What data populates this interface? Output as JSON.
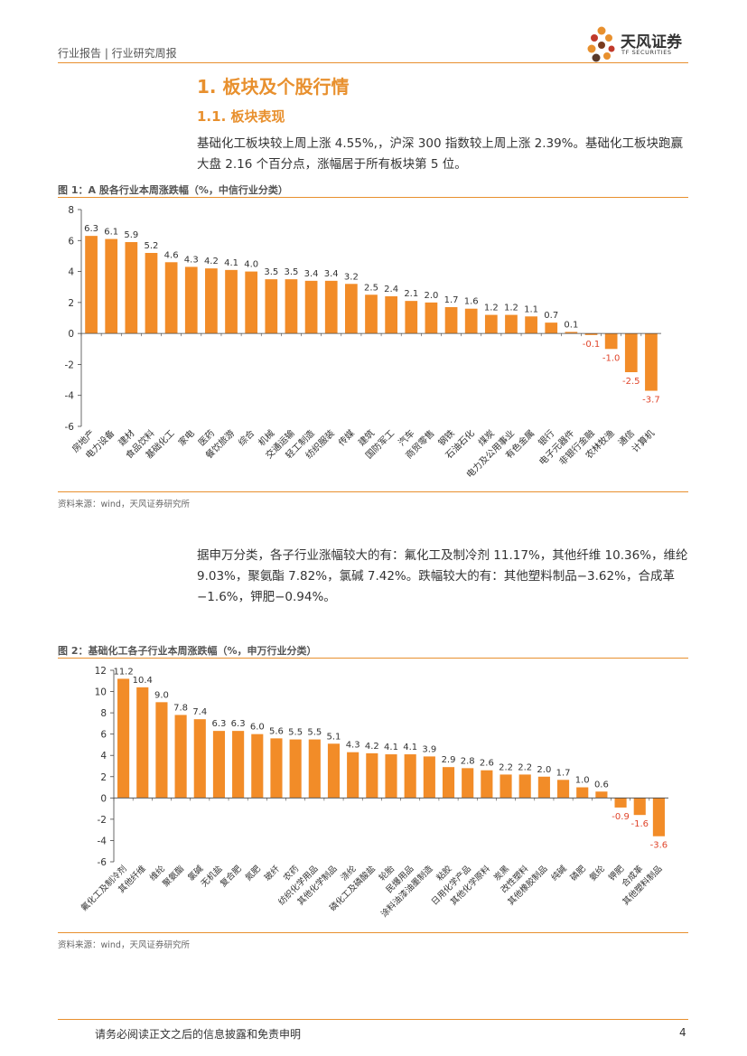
{
  "header": {
    "report_type": "行业报告 | 行业研究周报",
    "brand_cn": "天风证券",
    "brand_en": "TF SECURITIES",
    "accent": "#E8902E"
  },
  "section": {
    "h1": "1. 板块及个股行情",
    "h2": "1.1. 板块表现",
    "para1": "基础化工板块较上周上涨 4.55%,，沪深 300 指数较上周上涨 2.39%。基础化工板块跑赢大盘 2.16 个百分点，涨幅居于所有板块第 5 位。",
    "para2": "据申万分类，各子行业涨幅较大的有：氟化工及制冷剂 11.17%，其他纤维 10.36%，维纶 9.03%，聚氨酯 7.82%，氯碱 7.42%。跌幅较大的有：其他塑料制品−3.62%，合成革−1.6%，钾肥−0.94%。"
  },
  "figure1": {
    "title": "图 1：A 股各行业本周涨跌幅（%，中信行业分类）",
    "source": "资料来源：wind，天风证券研究所"
  },
  "figure2": {
    "title": "图 2：基础化工各子行业本周涨跌幅（%，申万行业分类）",
    "source": "资料来源：wind，天风证券研究所"
  },
  "footer": {
    "disclaimer": "请务必阅读正文之后的信息披露和免责申明",
    "page": "4"
  },
  "colors": {
    "bar": "#F28C28",
    "neg_label": "#E0452B",
    "axis": "#444444"
  },
  "chart_data": [
    {
      "type": "bar",
      "title": "图 1：A 股各行业本周涨跌幅（%，中信行业分类）",
      "xlabel": "",
      "ylabel": "%",
      "ylim": [
        -6,
        8
      ],
      "yticks": [
        -6,
        -4,
        -2,
        0,
        2,
        4,
        6,
        8
      ],
      "categories": [
        "房地产",
        "电力设备",
        "建材",
        "食品饮料",
        "基础化工",
        "家电",
        "医药",
        "餐饮旅游",
        "综合",
        "机械",
        "交通运输",
        "轻工制造",
        "纺织服装",
        "传媒",
        "建筑",
        "国防军工",
        "汽车",
        "商贸零售",
        "钢铁",
        "石油石化",
        "煤炭",
        "电力及公用事业",
        "有色金属",
        "银行",
        "电子元器件",
        "非银行金融",
        "农林牧渔",
        "通信",
        "计算机"
      ],
      "values": [
        6.3,
        6.1,
        5.9,
        5.2,
        4.6,
        4.3,
        4.2,
        4.1,
        4.0,
        3.5,
        3.5,
        3.4,
        3.4,
        3.2,
        2.5,
        2.4,
        2.1,
        2.0,
        1.7,
        1.6,
        1.2,
        1.2,
        1.1,
        0.7,
        0.1,
        -0.1,
        -1.0,
        -2.5,
        -3.7
      ],
      "labels": [
        "6.3",
        "6.1",
        "5.9",
        "5.2",
        "4.6",
        "4.3",
        "4.2",
        "4.1",
        "4.0",
        "3.5",
        "3.5",
        "3.4",
        "3.4",
        "3.2",
        "2.5",
        "2.4",
        "2.1",
        "2.0",
        "1.7",
        "1.6",
        "1.2",
        "1.2",
        "1.1",
        "0.7",
        "0.1",
        "-0.1",
        "-1.0",
        "-2.5",
        "-3.7"
      ]
    },
    {
      "type": "bar",
      "title": "图 2：基础化工各子行业本周涨跌幅（%，申万行业分类）",
      "xlabel": "",
      "ylabel": "%",
      "ylim": [
        -6,
        12
      ],
      "yticks": [
        -6,
        -4,
        -2,
        0,
        2,
        4,
        6,
        8,
        10,
        12
      ],
      "categories": [
        "氟化工及制冷剂",
        "其他纤维",
        "维纶",
        "聚氨酯",
        "氯碱",
        "无机盐",
        "复合肥",
        "氮肥",
        "玻纤",
        "农药",
        "纺织化学用品",
        "其他化学制品",
        "涤纶",
        "磷化工及磷酸盐",
        "轮胎",
        "民爆用品",
        "涂料油漆油墨制造",
        "粘胶",
        "日用化学产品",
        "其他化学原料",
        "炭黑",
        "改性塑料",
        "其他橡胶制品",
        "纯碱",
        "磷肥",
        "氨纶",
        "钾肥",
        "合成革",
        "其他塑料制品"
      ],
      "values": [
        11.2,
        10.4,
        9.0,
        7.8,
        7.4,
        6.3,
        6.3,
        6.0,
        5.6,
        5.5,
        5.5,
        5.1,
        4.3,
        4.2,
        4.1,
        4.1,
        3.9,
        2.9,
        2.8,
        2.6,
        2.2,
        2.2,
        2.0,
        1.7,
        1.0,
        0.6,
        -0.9,
        -1.6,
        -3.6
      ],
      "labels": [
        "11.2",
        "10.4",
        "9.0",
        "7.8",
        "7.4",
        "6.3",
        "6.3",
        "6.0",
        "5.6",
        "5.5",
        "5.5",
        "5.1",
        "4.3",
        "4.2",
        "4.1",
        "4.1",
        "3.9",
        "2.9",
        "2.8",
        "2.6",
        "2.2",
        "2.2",
        "2.0",
        "1.7",
        "1.0",
        "0.6",
        "-0.9",
        "-1.6",
        "-3.6"
      ]
    }
  ]
}
